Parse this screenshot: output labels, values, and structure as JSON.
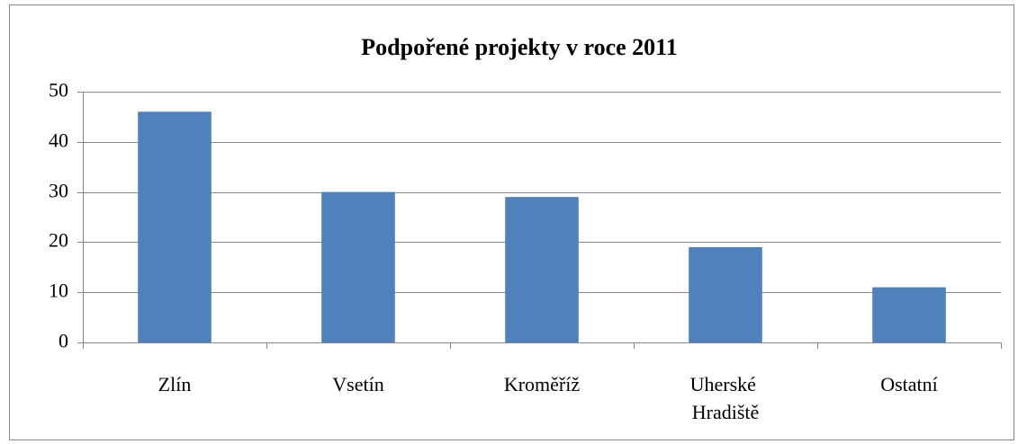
{
  "chart_data": {
    "type": "bar",
    "title": "Podpořené projekty v roce 2011",
    "categories": [
      "Zlín",
      "Vsetín",
      "Kroměříž",
      "Uherské Hradiště",
      "Ostatní"
    ],
    "values": [
      46,
      30,
      29,
      19,
      11
    ],
    "color": "#4f81bd",
    "ylim": [
      0,
      50
    ],
    "yticks": [
      0,
      10,
      20,
      30,
      40,
      50
    ],
    "grid": true
  }
}
